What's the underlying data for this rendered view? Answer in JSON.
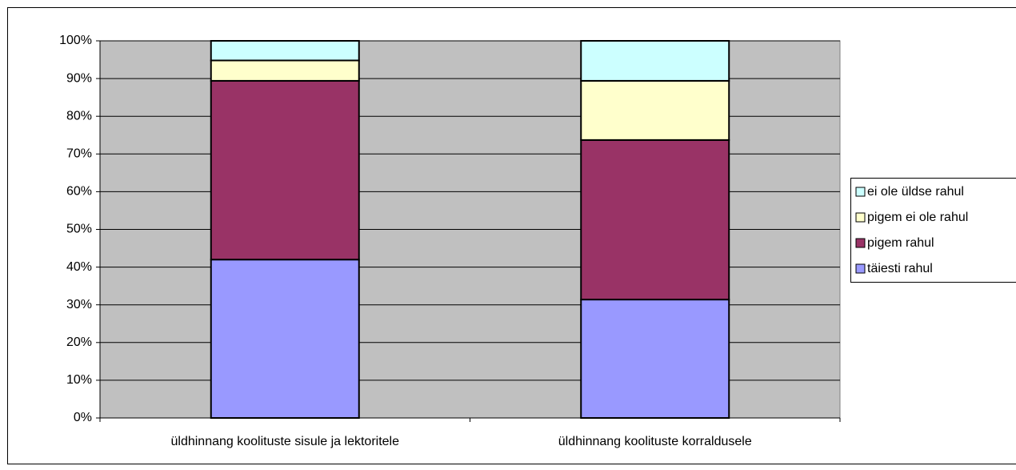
{
  "chart_data": {
    "type": "stacked-bar",
    "categories": [
      "üldhinnang koolituste sisule ja lektoritele",
      "üldhinnang koolituste korraldusele"
    ],
    "series": [
      {
        "name": "täiesti rahul",
        "color": "#9999ff",
        "values": [
          42,
          31.4
        ]
      },
      {
        "name": "pigem rahul",
        "color": "#993366",
        "values": [
          47.4,
          42.3
        ]
      },
      {
        "name": "pigem ei ole rahul",
        "color": "#ffffcc",
        "values": [
          5.4,
          15.7
        ]
      },
      {
        "name": "ei ole üldse rahul",
        "color": "#ccffff",
        "values": [
          5.2,
          10.6
        ]
      }
    ],
    "ylim": [
      0,
      100
    ],
    "yticks": [
      {
        "value": 0,
        "label": "0%"
      },
      {
        "value": 10,
        "label": "10%"
      },
      {
        "value": 20,
        "label": "20%"
      },
      {
        "value": 30,
        "label": "30%"
      },
      {
        "value": 40,
        "label": "40%"
      },
      {
        "value": 50,
        "label": "50%"
      },
      {
        "value": 60,
        "label": "60%"
      },
      {
        "value": 70,
        "label": "70%"
      },
      {
        "value": 80,
        "label": "80%"
      },
      {
        "value": 90,
        "label": "90%"
      },
      {
        "value": 100,
        "label": "100%"
      }
    ],
    "grid": true,
    "legend": "right"
  }
}
